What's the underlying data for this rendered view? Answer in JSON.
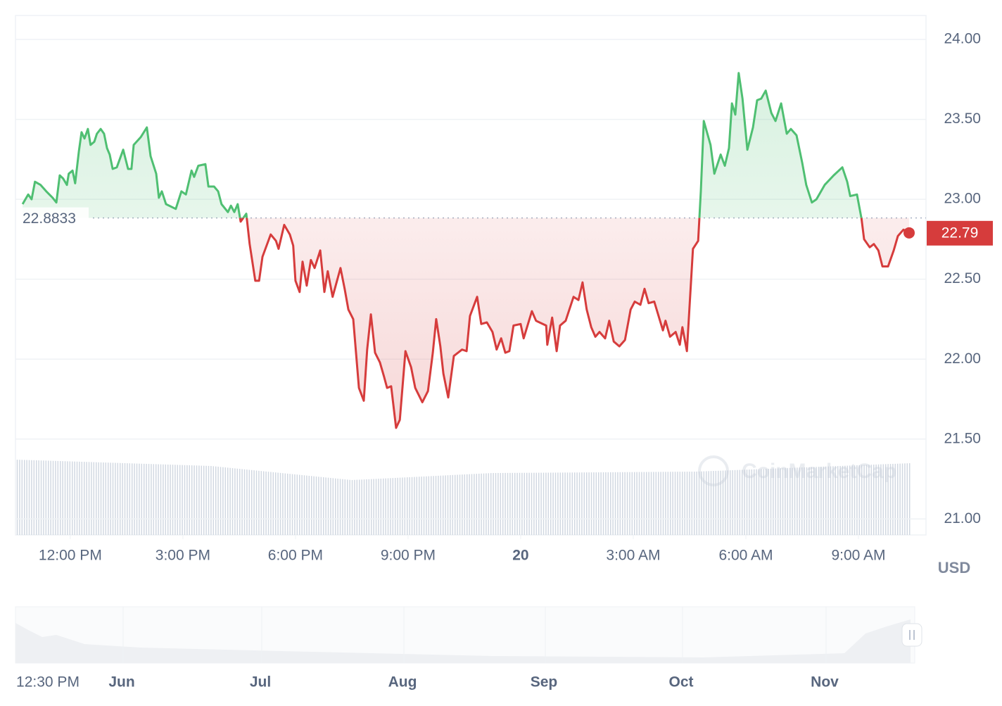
{
  "chart_data": {
    "type": "line",
    "x": [
      10.73,
      10.88,
      10.97,
      11.06,
      11.21,
      11.36,
      11.53,
      11.63,
      11.72,
      11.81,
      11.91,
      11.96,
      12.06,
      12.13,
      12.23,
      12.3,
      12.38,
      12.47,
      12.54,
      12.64,
      12.71,
      12.81,
      12.9,
      12.98,
      13.05,
      13.13,
      13.24,
      13.41,
      13.54,
      13.63,
      13.69,
      13.88,
      14.04,
      14.14,
      14.29,
      14.36,
      14.44,
      14.55,
      14.81,
      14.96,
      15.08,
      15.23,
      15.3,
      15.41,
      15.6,
      15.68,
      15.83,
      15.94,
      16.03,
      16.2,
      16.28,
      16.37,
      16.46,
      16.54,
      16.69,
      16.78,
      16.93,
      17.03,
      17.12,
      17.34,
      17.48,
      17.55,
      17.7,
      17.85,
      17.94,
      18.0,
      18.11,
      18.19,
      18.3,
      18.41,
      18.51,
      18.66,
      18.77,
      18.86,
      18.99,
      19.2,
      19.31,
      19.41,
      19.54,
      19.69,
      19.82,
      19.91,
      20.01,
      20.12,
      20.25,
      20.36,
      20.44,
      20.55,
      20.68,
      20.78,
      20.93,
      21.08,
      21.19,
      21.38,
      21.53,
      21.66,
      21.75,
      21.86,
      21.94,
      22.07,
      22.22,
      22.44,
      22.56,
      22.65,
      22.84,
      22.95,
      23.1,
      23.25,
      23.36,
      23.48,
      23.59,
      23.7,
      23.81,
      24.0,
      24.08,
      24.3,
      24.41,
      24.68,
      24.71,
      24.84,
      24.96,
      25.05,
      25.2,
      25.41,
      25.54,
      25.65,
      25.76,
      25.88,
      25.99,
      26.1,
      26.25,
      26.36,
      26.48,
      26.63,
      26.78,
      26.93,
      27.04,
      27.19,
      27.3,
      27.41,
      27.56,
      27.79,
      27.86,
      27.98,
      28.13,
      28.24,
      28.31,
      28.43,
      28.59,
      28.73,
      28.8,
      28.88,
      29.06,
      29.16,
      29.33,
      29.44,
      29.55,
      29.63,
      29.72,
      29.81,
      29.91,
      30.04,
      30.19,
      30.3,
      30.41,
      30.53,
      30.68,
      30.79,
      30.94,
      31.09,
      31.2,
      31.35,
      31.5,
      31.61,
      31.76,
      31.88,
      32.1,
      32.34,
      32.57,
      32.7,
      32.78,
      32.96,
      33.08,
      33.15,
      33.3,
      33.41,
      33.53,
      33.64,
      33.79,
      33.94,
      34.05,
      34.2,
      34.35
    ],
    "values": [
      22.97,
      23.03,
      23.0,
      23.11,
      23.09,
      23.05,
      23.01,
      22.98,
      23.15,
      23.13,
      23.09,
      23.16,
      23.18,
      23.1,
      23.3,
      23.42,
      23.38,
      23.44,
      23.34,
      23.36,
      23.41,
      23.44,
      23.41,
      23.32,
      23.28,
      23.19,
      23.2,
      23.31,
      23.19,
      23.19,
      23.34,
      23.39,
      23.45,
      23.27,
      23.16,
      23.01,
      23.05,
      22.97,
      22.94,
      23.05,
      23.03,
      23.18,
      23.14,
      23.21,
      23.22,
      23.08,
      23.08,
      23.05,
      22.97,
      22.92,
      22.96,
      22.92,
      22.97,
      22.86,
      22.91,
      22.72,
      22.49,
      22.49,
      22.64,
      22.78,
      22.74,
      22.69,
      22.84,
      22.78,
      22.71,
      22.49,
      22.42,
      22.61,
      22.46,
      22.62,
      22.57,
      22.68,
      22.42,
      22.55,
      22.39,
      22.57,
      22.44,
      22.31,
      22.25,
      21.82,
      21.74,
      22.06,
      22.28,
      22.04,
      21.98,
      21.89,
      21.82,
      21.83,
      21.57,
      21.62,
      22.05,
      21.95,
      21.82,
      21.73,
      21.8,
      22.04,
      22.25,
      22.08,
      21.91,
      21.76,
      22.02,
      22.06,
      22.05,
      22.27,
      22.39,
      22.22,
      22.23,
      22.17,
      22.06,
      22.13,
      22.04,
      22.05,
      22.21,
      22.22,
      22.13,
      22.3,
      22.24,
      22.21,
      22.09,
      22.26,
      22.05,
      22.21,
      22.24,
      22.39,
      22.37,
      22.48,
      22.31,
      22.2,
      22.14,
      22.17,
      22.13,
      22.24,
      22.11,
      22.08,
      22.12,
      22.31,
      22.36,
      22.34,
      22.44,
      22.35,
      22.36,
      22.18,
      22.24,
      22.14,
      22.17,
      22.09,
      22.2,
      22.05,
      22.69,
      22.74,
      23.05,
      23.49,
      23.34,
      23.16,
      23.28,
      23.21,
      23.32,
      23.6,
      23.53,
      23.79,
      23.63,
      23.31,
      23.45,
      23.62,
      23.63,
      23.68,
      23.54,
      23.49,
      23.6,
      23.41,
      23.44,
      23.4,
      23.23,
      23.09,
      22.98,
      23.0,
      23.09,
      23.15,
      23.2,
      23.11,
      23.02,
      23.03,
      22.88,
      22.75,
      22.7,
      22.72,
      22.68,
      22.58,
      22.58,
      22.68,
      22.77,
      22.81,
      22.79
    ],
    "up_color": "#4fbf72",
    "down_color": "#d63c3c",
    "xlim": [
      10.54,
      34.8
    ],
    "xticks": [
      {
        "value": 12,
        "label": "12:00 PM"
      },
      {
        "value": 15,
        "label": "3:00 PM"
      },
      {
        "value": 18,
        "label": "6:00 PM"
      },
      {
        "value": 21,
        "label": "9:00 PM"
      },
      {
        "value": 24,
        "label": "20"
      },
      {
        "value": 27,
        "label": "3:00 AM"
      },
      {
        "value": 30,
        "label": "6:00 AM"
      },
      {
        "value": 33,
        "label": "9:00 AM"
      }
    ],
    "ylim": [
      20.9,
      24.15
    ],
    "yticks": [
      {
        "value": 21,
        "label": "21.00"
      },
      {
        "value": 21.5,
        "label": "21.50"
      },
      {
        "value": 22,
        "label": "22.00"
      },
      {
        "value": 22.5,
        "label": "22.50"
      },
      {
        "value": 23,
        "label": "23.00"
      },
      {
        "value": 23.5,
        "label": "23.50"
      },
      {
        "value": 24,
        "label": "24.00"
      }
    ],
    "grid": true,
    "reference_price": 22.8833,
    "last_price": 22.79,
    "unit": "USD",
    "watermark": "CoinMarketCap",
    "navigator": {
      "labels": [
        "12:30 PM",
        "Jun",
        "Jul",
        "Aug",
        "Sep",
        "Oct",
        "Nov"
      ]
    }
  }
}
